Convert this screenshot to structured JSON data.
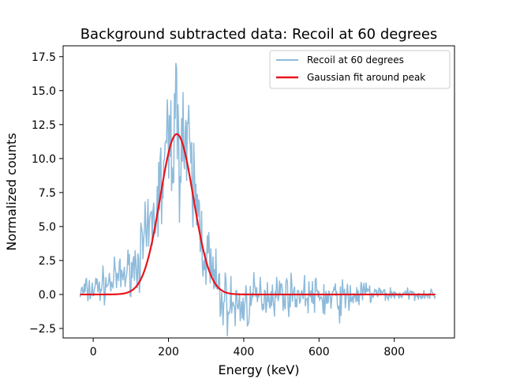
{
  "chart_data": {
    "type": "line",
    "title": "Background subtracted data: Recoil at 60 degrees",
    "xlabel": "Energy (keV)",
    "ylabel": "Normalized counts",
    "xlim": [
      -80,
      960
    ],
    "ylim": [
      -3.2,
      18.3
    ],
    "xticks": [
      0,
      200,
      400,
      600,
      800
    ],
    "yticks": [
      -2.5,
      0.0,
      2.5,
      5.0,
      7.5,
      10.0,
      12.5,
      15.0,
      17.5
    ],
    "ytick_labels": [
      "−2.5",
      "0.0",
      "2.5",
      "5.0",
      "7.5",
      "10.0",
      "12.5",
      "15.0",
      "17.5"
    ],
    "grid": false,
    "legend_position": "top-right",
    "series": [
      {
        "name": "Recoil at 60 degrees",
        "kind": "data",
        "color": "#8ebbdb",
        "x_range": [
          -35,
          910
        ],
        "profile": [
          [
            -35,
            0.1
          ],
          [
            0,
            0.4
          ],
          [
            40,
            0.8
          ],
          [
            80,
            1.4
          ],
          [
            110,
            2.2
          ],
          [
            140,
            3.6
          ],
          [
            160,
            5.5
          ],
          [
            180,
            8.0
          ],
          [
            200,
            10.8
          ],
          [
            220,
            12.6
          ],
          [
            240,
            11.6
          ],
          [
            260,
            8.8
          ],
          [
            280,
            5.8
          ],
          [
            300,
            3.0
          ],
          [
            320,
            1.0
          ],
          [
            340,
            -0.3
          ],
          [
            360,
            -0.7
          ],
          [
            380,
            -0.9
          ],
          [
            400,
            -0.8
          ],
          [
            420,
            -0.5
          ],
          [
            450,
            0.0
          ],
          [
            500,
            0.1
          ],
          [
            560,
            0.0
          ],
          [
            600,
            -0.2
          ],
          [
            640,
            -0.4
          ],
          [
            680,
            -0.2
          ],
          [
            720,
            0.1
          ],
          [
            800,
            0.0
          ],
          [
            910,
            0.0
          ]
        ],
        "noise_envelope": [
          [
            -35,
            0.5
          ],
          [
            100,
            0.8
          ],
          [
            180,
            2.0
          ],
          [
            230,
            2.8
          ],
          [
            300,
            1.6
          ],
          [
            350,
            1.1
          ],
          [
            420,
            0.9
          ],
          [
            550,
            0.6
          ],
          [
            650,
            0.8
          ],
          [
            700,
            0.5
          ],
          [
            800,
            0.25
          ],
          [
            910,
            0.15
          ]
        ]
      },
      {
        "name": "Gaussian fit around peak",
        "kind": "fit",
        "color": "#e8141c",
        "amplitude": 11.8,
        "mean": 222,
        "sigma": 44,
        "x_range": [
          -35,
          910
        ]
      }
    ]
  }
}
